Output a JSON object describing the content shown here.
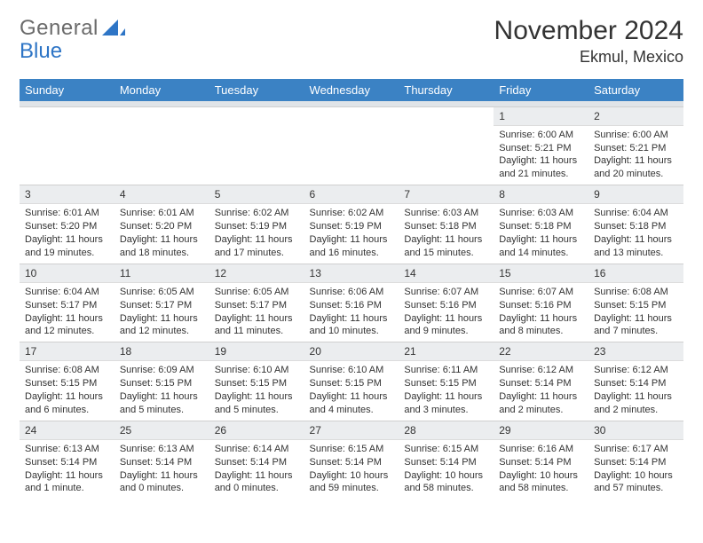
{
  "logo": {
    "part1": "General",
    "part2": "Blue"
  },
  "title": "November 2024",
  "location": "Ekmul, Mexico",
  "weekday_header": {
    "background_color": "#3b82c4",
    "text_color": "#ffffff",
    "labels": [
      "Sunday",
      "Monday",
      "Tuesday",
      "Wednesday",
      "Thursday",
      "Friday",
      "Saturday"
    ]
  },
  "calendar": {
    "daynum_background": "#ebedef",
    "row_divider_color": "#cfcfcf",
    "body_fontsize": 11,
    "weeks": [
      [
        {
          "day": "",
          "sunrise": "",
          "sunset": "",
          "daylight": "",
          "empty": true
        },
        {
          "day": "",
          "sunrise": "",
          "sunset": "",
          "daylight": "",
          "empty": true
        },
        {
          "day": "",
          "sunrise": "",
          "sunset": "",
          "daylight": "",
          "empty": true
        },
        {
          "day": "",
          "sunrise": "",
          "sunset": "",
          "daylight": "",
          "empty": true
        },
        {
          "day": "",
          "sunrise": "",
          "sunset": "",
          "daylight": "",
          "empty": true
        },
        {
          "day": "1",
          "sunrise": "Sunrise: 6:00 AM",
          "sunset": "Sunset: 5:21 PM",
          "daylight": "Daylight: 11 hours and 21 minutes."
        },
        {
          "day": "2",
          "sunrise": "Sunrise: 6:00 AM",
          "sunset": "Sunset: 5:21 PM",
          "daylight": "Daylight: 11 hours and 20 minutes."
        }
      ],
      [
        {
          "day": "3",
          "sunrise": "Sunrise: 6:01 AM",
          "sunset": "Sunset: 5:20 PM",
          "daylight": "Daylight: 11 hours and 19 minutes."
        },
        {
          "day": "4",
          "sunrise": "Sunrise: 6:01 AM",
          "sunset": "Sunset: 5:20 PM",
          "daylight": "Daylight: 11 hours and 18 minutes."
        },
        {
          "day": "5",
          "sunrise": "Sunrise: 6:02 AM",
          "sunset": "Sunset: 5:19 PM",
          "daylight": "Daylight: 11 hours and 17 minutes."
        },
        {
          "day": "6",
          "sunrise": "Sunrise: 6:02 AM",
          "sunset": "Sunset: 5:19 PM",
          "daylight": "Daylight: 11 hours and 16 minutes."
        },
        {
          "day": "7",
          "sunrise": "Sunrise: 6:03 AM",
          "sunset": "Sunset: 5:18 PM",
          "daylight": "Daylight: 11 hours and 15 minutes."
        },
        {
          "day": "8",
          "sunrise": "Sunrise: 6:03 AM",
          "sunset": "Sunset: 5:18 PM",
          "daylight": "Daylight: 11 hours and 14 minutes."
        },
        {
          "day": "9",
          "sunrise": "Sunrise: 6:04 AM",
          "sunset": "Sunset: 5:18 PM",
          "daylight": "Daylight: 11 hours and 13 minutes."
        }
      ],
      [
        {
          "day": "10",
          "sunrise": "Sunrise: 6:04 AM",
          "sunset": "Sunset: 5:17 PM",
          "daylight": "Daylight: 11 hours and 12 minutes."
        },
        {
          "day": "11",
          "sunrise": "Sunrise: 6:05 AM",
          "sunset": "Sunset: 5:17 PM",
          "daylight": "Daylight: 11 hours and 12 minutes."
        },
        {
          "day": "12",
          "sunrise": "Sunrise: 6:05 AM",
          "sunset": "Sunset: 5:17 PM",
          "daylight": "Daylight: 11 hours and 11 minutes."
        },
        {
          "day": "13",
          "sunrise": "Sunrise: 6:06 AM",
          "sunset": "Sunset: 5:16 PM",
          "daylight": "Daylight: 11 hours and 10 minutes."
        },
        {
          "day": "14",
          "sunrise": "Sunrise: 6:07 AM",
          "sunset": "Sunset: 5:16 PM",
          "daylight": "Daylight: 11 hours and 9 minutes."
        },
        {
          "day": "15",
          "sunrise": "Sunrise: 6:07 AM",
          "sunset": "Sunset: 5:16 PM",
          "daylight": "Daylight: 11 hours and 8 minutes."
        },
        {
          "day": "16",
          "sunrise": "Sunrise: 6:08 AM",
          "sunset": "Sunset: 5:15 PM",
          "daylight": "Daylight: 11 hours and 7 minutes."
        }
      ],
      [
        {
          "day": "17",
          "sunrise": "Sunrise: 6:08 AM",
          "sunset": "Sunset: 5:15 PM",
          "daylight": "Daylight: 11 hours and 6 minutes."
        },
        {
          "day": "18",
          "sunrise": "Sunrise: 6:09 AM",
          "sunset": "Sunset: 5:15 PM",
          "daylight": "Daylight: 11 hours and 5 minutes."
        },
        {
          "day": "19",
          "sunrise": "Sunrise: 6:10 AM",
          "sunset": "Sunset: 5:15 PM",
          "daylight": "Daylight: 11 hours and 5 minutes."
        },
        {
          "day": "20",
          "sunrise": "Sunrise: 6:10 AM",
          "sunset": "Sunset: 5:15 PM",
          "daylight": "Daylight: 11 hours and 4 minutes."
        },
        {
          "day": "21",
          "sunrise": "Sunrise: 6:11 AM",
          "sunset": "Sunset: 5:15 PM",
          "daylight": "Daylight: 11 hours and 3 minutes."
        },
        {
          "day": "22",
          "sunrise": "Sunrise: 6:12 AM",
          "sunset": "Sunset: 5:14 PM",
          "daylight": "Daylight: 11 hours and 2 minutes."
        },
        {
          "day": "23",
          "sunrise": "Sunrise: 6:12 AM",
          "sunset": "Sunset: 5:14 PM",
          "daylight": "Daylight: 11 hours and 2 minutes."
        }
      ],
      [
        {
          "day": "24",
          "sunrise": "Sunrise: 6:13 AM",
          "sunset": "Sunset: 5:14 PM",
          "daylight": "Daylight: 11 hours and 1 minute."
        },
        {
          "day": "25",
          "sunrise": "Sunrise: 6:13 AM",
          "sunset": "Sunset: 5:14 PM",
          "daylight": "Daylight: 11 hours and 0 minutes."
        },
        {
          "day": "26",
          "sunrise": "Sunrise: 6:14 AM",
          "sunset": "Sunset: 5:14 PM",
          "daylight": "Daylight: 11 hours and 0 minutes."
        },
        {
          "day": "27",
          "sunrise": "Sunrise: 6:15 AM",
          "sunset": "Sunset: 5:14 PM",
          "daylight": "Daylight: 10 hours and 59 minutes."
        },
        {
          "day": "28",
          "sunrise": "Sunrise: 6:15 AM",
          "sunset": "Sunset: 5:14 PM",
          "daylight": "Daylight: 10 hours and 58 minutes."
        },
        {
          "day": "29",
          "sunrise": "Sunrise: 6:16 AM",
          "sunset": "Sunset: 5:14 PM",
          "daylight": "Daylight: 10 hours and 58 minutes."
        },
        {
          "day": "30",
          "sunrise": "Sunrise: 6:17 AM",
          "sunset": "Sunset: 5:14 PM",
          "daylight": "Daylight: 10 hours and 57 minutes."
        }
      ]
    ]
  }
}
